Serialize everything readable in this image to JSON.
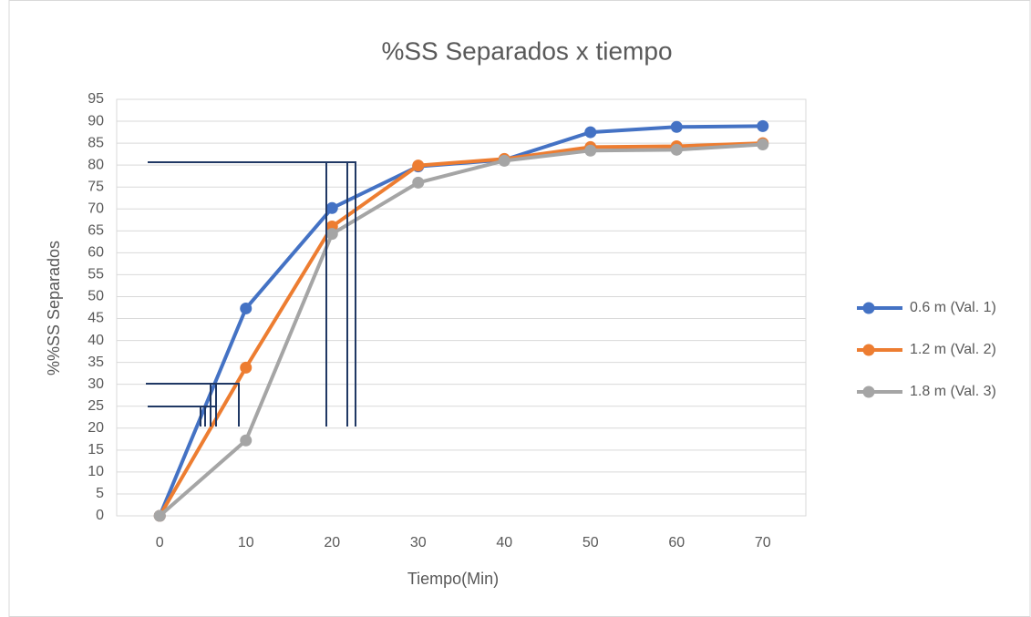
{
  "chart_data": {
    "type": "line",
    "title": "%SS Separados x tiempo",
    "x_label": "Tiempo(Min)",
    "y_label": "%%SS Separados",
    "x": [
      0,
      10,
      20,
      30,
      40,
      50,
      60,
      70
    ],
    "xlim": [
      -5,
      75
    ],
    "xticks": [
      0,
      10,
      20,
      30,
      40,
      50,
      60,
      70
    ],
    "ylim": [
      0,
      95
    ],
    "yticks": [
      0,
      5,
      10,
      15,
      20,
      25,
      30,
      35,
      40,
      45,
      50,
      55,
      60,
      65,
      70,
      75,
      80,
      85,
      90,
      95
    ],
    "grid": true,
    "legend": "right",
    "series": [
      {
        "name": "0.6 m (Val. 1)",
        "color": "#4472c4",
        "values": [
          0,
          47.3,
          70.2,
          79.7,
          81.2,
          87.5,
          88.7,
          88.9
        ]
      },
      {
        "name": "1.2 m (Val. 2)",
        "color": "#ed7d31",
        "values": [
          0,
          33.8,
          66,
          79.9,
          81.4,
          84.1,
          84.3,
          85
        ]
      },
      {
        "name": "1.8 m (Val. 3)",
        "color": "#a5a5a5",
        "values": [
          0,
          17.2,
          64.3,
          76,
          81,
          83.3,
          83.5,
          84.7
        ]
      }
    ]
  }
}
